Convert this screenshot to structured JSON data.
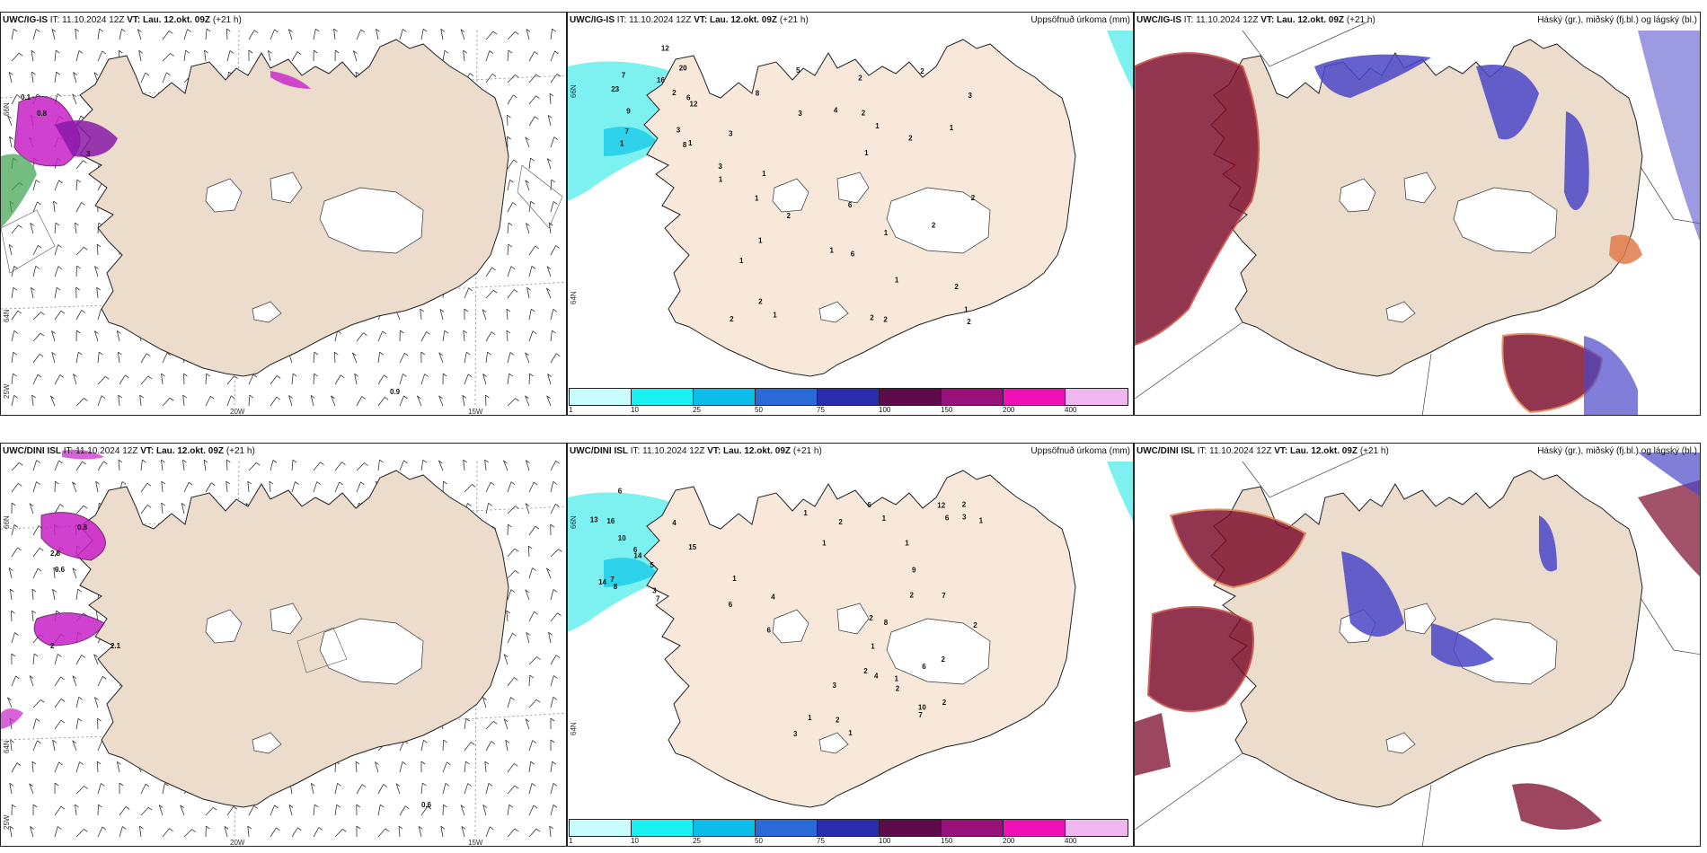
{
  "rows": [
    {
      "model": "UWC/IG-IS",
      "it_label": "IT:",
      "it_value": "11.10.2024 12Z",
      "vt_label": "VT:",
      "vt_value": "Lau. 12.okt. 09Z",
      "lead": "(+21 h)",
      "precip_title": "Uppsöfnuð úrkoma (mm)",
      "cloud_title": "Háský (gr.), miðský (fj.bl.) og lágský (bl.)",
      "wind_point_label": "0.9",
      "precip_values": [
        "7",
        "6",
        "16",
        "12",
        "9",
        "1",
        "7",
        "12",
        "8",
        "20",
        "23",
        "3",
        "2",
        "1",
        "1",
        "6",
        "2",
        "3",
        "5",
        "4",
        "1",
        "2",
        "2",
        "1",
        "1",
        "2",
        "2",
        "1",
        "2",
        "3",
        "1",
        "2",
        "1",
        "2",
        "1",
        "1",
        "2",
        "1",
        "1",
        "2",
        "2",
        "3",
        "1",
        "6",
        "2",
        "8",
        "1",
        "2",
        "3"
      ]
    },
    {
      "model": "UWC/DINI ISL",
      "it_label": "IT:",
      "it_value": "11.10.2024 12Z",
      "vt_label": "VT:",
      "vt_value": "Lau. 12.okt. 09Z",
      "lead": "(+21 h)",
      "precip_title": "Uppsöfnuð úrkoma (mm)",
      "cloud_title": "Háský (gr.), miðský (fj.bl.) og lágský (bl.)",
      "wind_point_label": "0.6",
      "precip_values": [
        "7",
        "6",
        "7",
        "16",
        "4",
        "3",
        "15",
        "10",
        "14",
        "8",
        "14",
        "13",
        "6",
        "5",
        "2",
        "12",
        "6",
        "6",
        "6",
        "7",
        "10",
        "4",
        "3",
        "7",
        "8",
        "9",
        "6",
        "4",
        "1",
        "1",
        "2",
        "2",
        "1",
        "1",
        "1",
        "2",
        "6",
        "1",
        "2",
        "1",
        "2",
        "2",
        "1",
        "2",
        "1",
        "2",
        "2",
        "3",
        "1",
        "3"
      ]
    }
  ],
  "wind_map": {
    "lon_labels": [
      "20W",
      "15W"
    ],
    "lat_labels": [
      "66N",
      "64N",
      "25W"
    ],
    "contour_labels_top": [
      "0.1",
      "0.8",
      "3"
    ],
    "contour_labels_bottom": [
      "0.8",
      "2.8",
      "0.6",
      "2",
      "2.1"
    ]
  },
  "precip_map": {
    "lat_labels": [
      "66N",
      "64N"
    ],
    "colorbar": {
      "labels": [
        "1",
        "10",
        "25",
        "50",
        "75",
        "100",
        "150",
        "200",
        "400"
      ],
      "colors": [
        "#c8fbfb",
        "#19f0f0",
        "#0bbde8",
        "#2a6ad8",
        "#2b2bb0",
        "#5c0a4a",
        "#99107a",
        "#f010b8",
        "#f0b6f0"
      ]
    }
  },
  "colors": {
    "land": "#ebdccb",
    "land_precip": "#f7e8da",
    "precip_light": "#7df0f0",
    "precip_med": "#2ed2ea",
    "cloud_high": "#7b0a2a",
    "cloud_high_edge": "#c43a35",
    "cloud_mid": "#e07a4a",
    "cloud_low": "#4a47c8",
    "wind_precip": "#c820c8",
    "green": "#3aa04a"
  }
}
